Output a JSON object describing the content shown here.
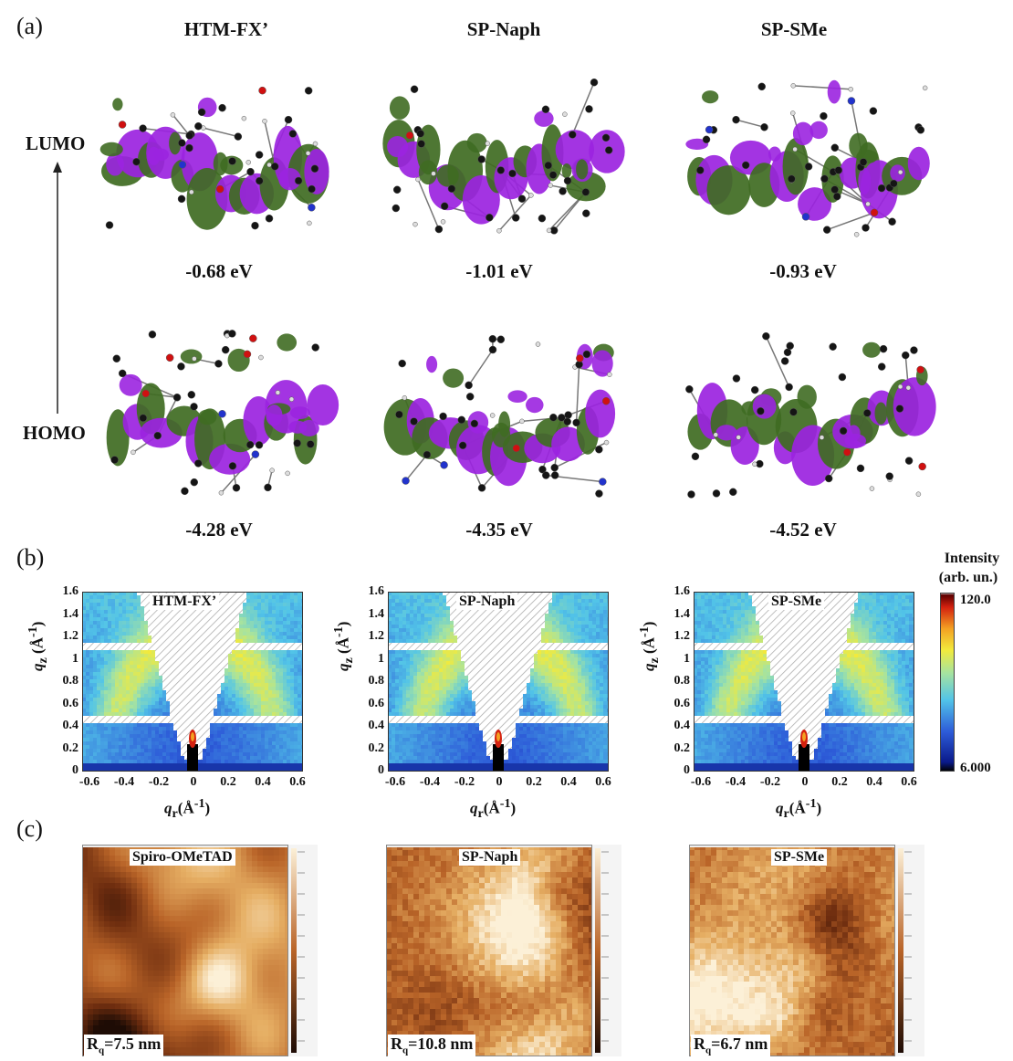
{
  "panel_a": {
    "label": "(a)",
    "lumo_label": "LUMO",
    "homo_label": "HOMO",
    "molecules": [
      {
        "name": "HTM-FX’",
        "lumo": "-0.68 eV",
        "homo": "-4.28 eV"
      },
      {
        "name": "SP-Naph",
        "lumo": "-1.01 eV",
        "homo": "-4.35 eV"
      },
      {
        "name": "SP-SMe",
        "lumo": "-0.93 eV",
        "homo": "-4.52 eV"
      }
    ],
    "orbital_colors": {
      "positive": "#9b23e0",
      "negative": "#3f6b22"
    }
  },
  "panel_b": {
    "label": "(b)",
    "y_ticks": [
      "1.6",
      "1.4",
      "1.2",
      "1",
      "0.8",
      "0.6",
      "0.4",
      "0.2",
      "0"
    ],
    "x_ticks": [
      "-0.6",
      "-0.4",
      "-0.2",
      "0",
      "0.2",
      "0.4",
      "0.6"
    ],
    "xlabel": "qr(Å-1)",
    "ylabel": "qz (Å-1)",
    "colorbar_title_1": "Intensity",
    "colorbar_title_2": "(arb. un.)",
    "colorbar_max": "120.0",
    "colorbar_min": "6.000",
    "samples": [
      "HTM-FX’",
      "SP-Naph",
      "SP-SMe"
    ]
  },
  "panel_c": {
    "label": "(c)",
    "images": [
      {
        "name": "Spiro-OMeTAD",
        "rq": "7.5 nm"
      },
      {
        "name": "SP-Naph",
        "rq": "10.8 nm"
      },
      {
        "name": "SP-SMe",
        "rq": "6.7 nm"
      }
    ]
  }
}
